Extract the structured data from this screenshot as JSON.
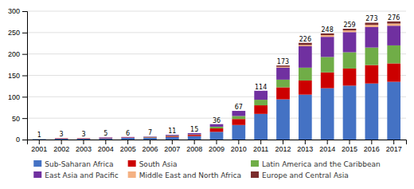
{
  "chart_data": {
    "type": "bar",
    "stacked": true,
    "grid": true,
    "categories": [
      "2001",
      "2002",
      "2003",
      "2004",
      "2005",
      "2006",
      "2007",
      "2008",
      "2009",
      "2010",
      "2011",
      "2012",
      "2013",
      "2014",
      "2015",
      "2016",
      "2017"
    ],
    "series": [
      {
        "name": "Sub-Saharan Africa",
        "color": "#4472C4",
        "values": [
          1,
          2,
          2,
          3,
          4,
          4,
          6,
          8,
          18,
          34,
          60,
          94,
          105,
          120,
          126,
          131,
          135
        ]
      },
      {
        "name": "South Asia",
        "color": "#CC0000",
        "values": [
          0,
          1,
          1,
          1,
          1,
          1,
          2,
          3,
          8,
          14,
          20,
          28,
          33,
          37,
          40,
          43,
          43
        ]
      },
      {
        "name": "Latin America and the Caribbean",
        "color": "#70AD47",
        "values": [
          0,
          0,
          0,
          0,
          0,
          1,
          1,
          1,
          4,
          7,
          13,
          18,
          30,
          36,
          38,
          41,
          42
        ]
      },
      {
        "name": "East Asia and Pacific",
        "color": "#7030A0",
        "values": [
          0,
          0,
          0,
          1,
          1,
          1,
          2,
          3,
          6,
          12,
          21,
          28,
          50,
          47,
          47,
          48,
          46
        ]
      },
      {
        "name": "Middle East and North Africa",
        "color": "#F4B183",
        "values": [
          0,
          0,
          0,
          0,
          0,
          0,
          0,
          0,
          0,
          0,
          0,
          2,
          3,
          4,
          4,
          5,
          5
        ]
      },
      {
        "name": "Europe and Central Asia",
        "color": "#7B2C2C",
        "values": [
          0,
          0,
          0,
          0,
          0,
          0,
          0,
          0,
          0,
          0,
          0,
          3,
          5,
          4,
          4,
          5,
          5
        ]
      }
    ],
    "totals": [
      1,
      3,
      3,
      5,
      6,
      7,
      11,
      15,
      36,
      67,
      114,
      173,
      226,
      248,
      259,
      273,
      276
    ],
    "ylim": [
      0,
      300
    ],
    "yticks": [
      0,
      50,
      100,
      150,
      200,
      250,
      300
    ]
  }
}
